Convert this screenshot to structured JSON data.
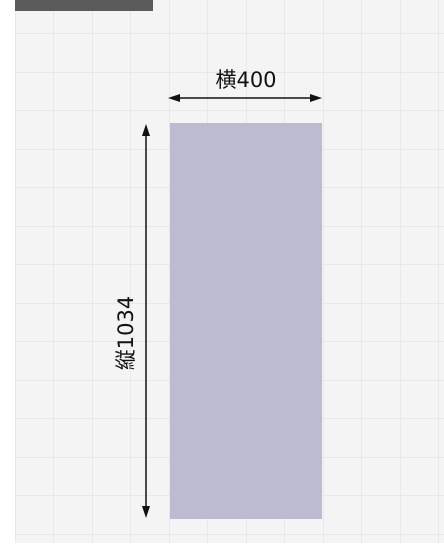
{
  "diagram": {
    "header_text": "",
    "width_label": "横400",
    "height_label": "縦1034",
    "shape_color": "#bdbbd2",
    "grid_color": "#dcdcdc",
    "grid_background": "#f4f4f4"
  }
}
